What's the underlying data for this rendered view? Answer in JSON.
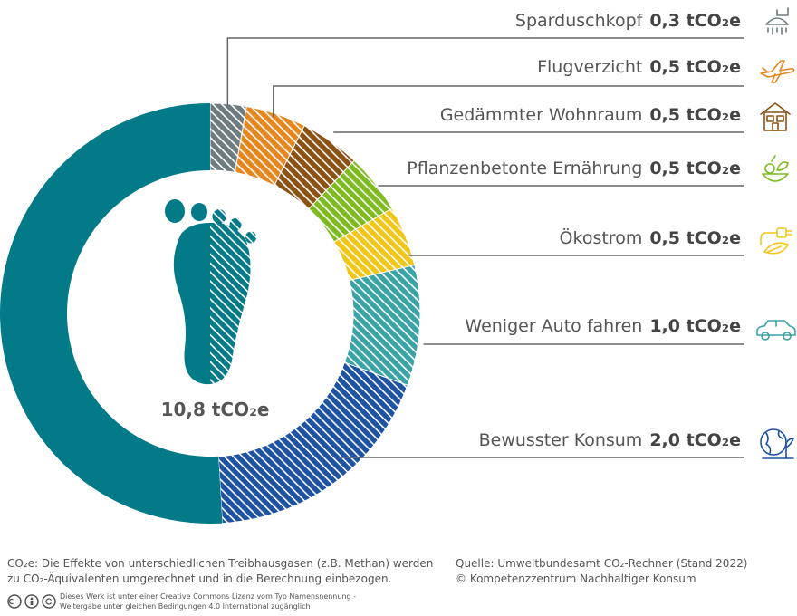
{
  "chart_data": {
    "type": "pie",
    "total_label": "10,8 tCO₂e",
    "total_value": 10.8,
    "remaining_value": 5.5,
    "series": [
      {
        "label": "Sparduschkopf",
        "value_text": "0,3 tCO₂e",
        "value": 0.3,
        "color": "#6e7b7f",
        "icon": "shower-head-icon"
      },
      {
        "label": "Flugverzicht",
        "value_text": "0,5 tCO₂e",
        "value": 0.5,
        "color": "#e8861e",
        "icon": "airplane-icon"
      },
      {
        "label": "Gedämmter Wohnraum",
        "value_text": "0,5 tCO₂e",
        "value": 0.5,
        "color": "#8b5214",
        "icon": "house-icon"
      },
      {
        "label": "Pflanzenbetonte Ernährung",
        "value_text": "0,5 tCO₂e",
        "value": 0.5,
        "color": "#7dbb21",
        "icon": "vegetables-icon"
      },
      {
        "label": "Ökostrom",
        "value_text": "0,5 tCO₂e",
        "value": 0.5,
        "color": "#f2c519",
        "icon": "green-plug-icon"
      },
      {
        "label": "Weniger Auto fahren",
        "value_text": "1,0 tCO₂e",
        "value": 1.0,
        "color": "#3aa3a6",
        "icon": "car-icon"
      },
      {
        "label": "Bewusster Konsum",
        "value_text": "2,0 tCO₂e",
        "value": 2.0,
        "color": "#1e52a3",
        "icon": "globe-plant-icon"
      }
    ],
    "remaining_color": "#027a87"
  },
  "footer": {
    "note_line1": "CO₂e: Die Effekte von unterschiedlichen Treibhausgasen (z.B. Methan) werden",
    "note_line2": "zu CO₂-Äquivalenten umgerechnet und in die Berechnung einbezogen.",
    "source_line1": "Quelle: Umweltbundesamt CO₂-Rechner (Stand 2022)",
    "source_line2": "© Kompetenzzentrum Nachhaltiger Konsum",
    "license_line1": "Dieses Werk ist unter einer Creative Commons Lizenz vom Typ Namensnennung -",
    "license_line2": "Weitergabe unter gleichen Bedingungen 4.0 International zugänglich"
  }
}
